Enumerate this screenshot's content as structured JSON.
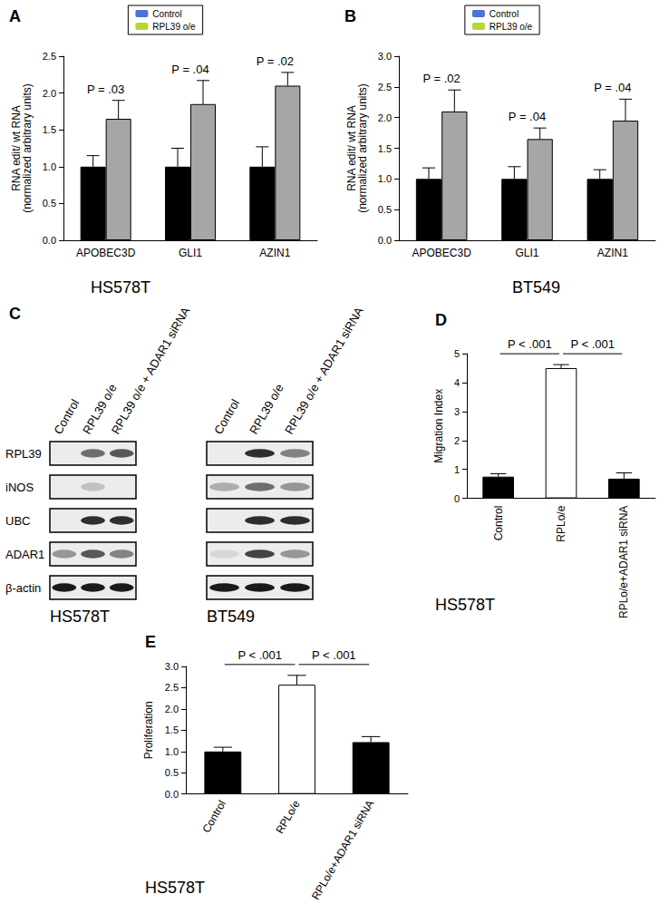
{
  "chart_data": [
    {
      "type": "bar",
      "panel": "A",
      "subtitle": "HS578T",
      "y_label": "RNA edit/ wt RNA\n(normalized arbitrary units)",
      "categories": [
        "APOBEC3D",
        "GLI1",
        "AZIN1"
      ],
      "series": [
        {
          "name": "Control",
          "color": "#000000",
          "values": [
            1,
            1,
            1
          ],
          "errors": [
            0.15,
            0.25,
            0.27
          ]
        },
        {
          "name": "RPL39 o/e",
          "color": "#a6a6a6",
          "values": [
            1.65,
            1.85,
            2.1
          ],
          "errors": [
            0.25,
            0.32,
            0.18
          ]
        }
      ],
      "annotations": [
        {
          "category": "APOBEC3D",
          "text": "P = .03"
        },
        {
          "category": "GLI1",
          "text": "P = .04"
        },
        {
          "category": "AZIN1",
          "text": "P = .02"
        }
      ],
      "ylim": [
        0,
        2.5
      ],
      "yticks": [
        {
          "value": 0,
          "label": "0.0"
        },
        0.5,
        {
          "value": 1,
          "label": "1.0"
        },
        1.5,
        {
          "value": 2,
          "label": "2.0"
        },
        2.5
      ],
      "legend": "top",
      "grid": false
    },
    {
      "type": "bar",
      "panel": "B",
      "subtitle": "BT549",
      "y_label": "RNA edit/ wt RNA\n(normalized arbitrary units)",
      "categories": [
        "APOBEC3D",
        "GLI1",
        "AZIN1"
      ],
      "series": [
        {
          "name": "Control",
          "color": "#000000",
          "values": [
            1,
            1,
            1
          ],
          "errors": [
            0.18,
            0.2,
            0.15
          ]
        },
        {
          "name": "RPL39 o/e",
          "color": "#a6a6a6",
          "values": [
            2.1,
            1.65,
            1.95
          ],
          "errors": [
            0.35,
            0.18,
            0.35
          ]
        }
      ],
      "annotations": [
        {
          "category": "APOBEC3D",
          "text": "P = .02"
        },
        {
          "category": "GLI1",
          "text": "P = .04"
        },
        {
          "category": "AZIN1",
          "text": "P = .04"
        }
      ],
      "ylim": [
        0,
        3
      ],
      "yticks": [
        {
          "value": 0,
          "label": "0.0"
        },
        0.5,
        {
          "value": 1,
          "label": "1.0"
        },
        1.5,
        {
          "value": 2,
          "label": "2.0"
        },
        2.5,
        {
          "value": 3,
          "label": "3.0"
        }
      ],
      "legend": "top",
      "grid": false
    },
    {
      "type": "bar",
      "panel": "D",
      "subtitle": "HS578T",
      "y_label": "Migration Index",
      "categories": [
        "Control",
        "RPLo/e",
        "RPLo/e+ADAR1 siRNA"
      ],
      "values": [
        0.75,
        4.5,
        0.68
      ],
      "errors": [
        0.1,
        0.12,
        0.2
      ],
      "colors": [
        "#000000",
        "#ffffff",
        "#000000"
      ],
      "brackets": [
        {
          "from": "Control",
          "to": "RPLo/e",
          "text": "P < .001"
        },
        {
          "from": "RPLo/e",
          "to": "RPLo/e+ADAR1 siRNA",
          "text": "P < .001"
        }
      ],
      "ylim": [
        0,
        5
      ],
      "yticks": [
        0,
        1,
        2,
        3,
        4,
        5
      ],
      "grid": false
    },
    {
      "type": "bar",
      "panel": "E",
      "subtitle": "HS578T",
      "y_label": "Proliferation",
      "categories": [
        "Control",
        "RPLo/e",
        "RPLo/e+ADAR1 siRNA"
      ],
      "values": [
        1.0,
        2.57,
        1.22
      ],
      "errors": [
        0.1,
        0.22,
        0.13
      ],
      "colors": [
        "#000000",
        "#ffffff",
        "#000000"
      ],
      "brackets": [
        {
          "from": "Control",
          "to": "RPLo/e",
          "text": "P < .001"
        },
        {
          "from": "RPLo/e",
          "to": "RPLo/e+ADAR1 siRNA",
          "text": "P < .001"
        }
      ],
      "ylim": [
        0,
        3
      ],
      "yticks": [
        {
          "value": 0,
          "label": "0.0"
        },
        0.5,
        {
          "value": 1,
          "label": "1.0"
        },
        1.5,
        {
          "value": 2,
          "label": "2.0"
        },
        2.5,
        {
          "value": 3,
          "label": "3.0"
        }
      ],
      "grid": false
    }
  ],
  "western_blot": {
    "panel": "C",
    "lanes": [
      "Control",
      "RPL39 o/e",
      "RPL39 o/e + ADAR1 siRNA"
    ],
    "rows": [
      "RPL39",
      "iNOS",
      "UBC",
      "ADAR1",
      "β-actin"
    ],
    "blots": [
      {
        "cell_line": "HS578T",
        "bands": [
          [
            0,
            0.6,
            0.7
          ],
          [
            0,
            0.2,
            0
          ],
          [
            0,
            0.9,
            0.9
          ],
          [
            0.4,
            0.7,
            0.5
          ],
          [
            1,
            1,
            1
          ]
        ]
      },
      {
        "cell_line": "BT549",
        "bands": [
          [
            0,
            0.9,
            0.5
          ],
          [
            0.3,
            0.6,
            0.4
          ],
          [
            0,
            0.9,
            0.9
          ],
          [
            0.1,
            0.8,
            0.4
          ],
          [
            1,
            1,
            1
          ]
        ]
      }
    ]
  }
}
